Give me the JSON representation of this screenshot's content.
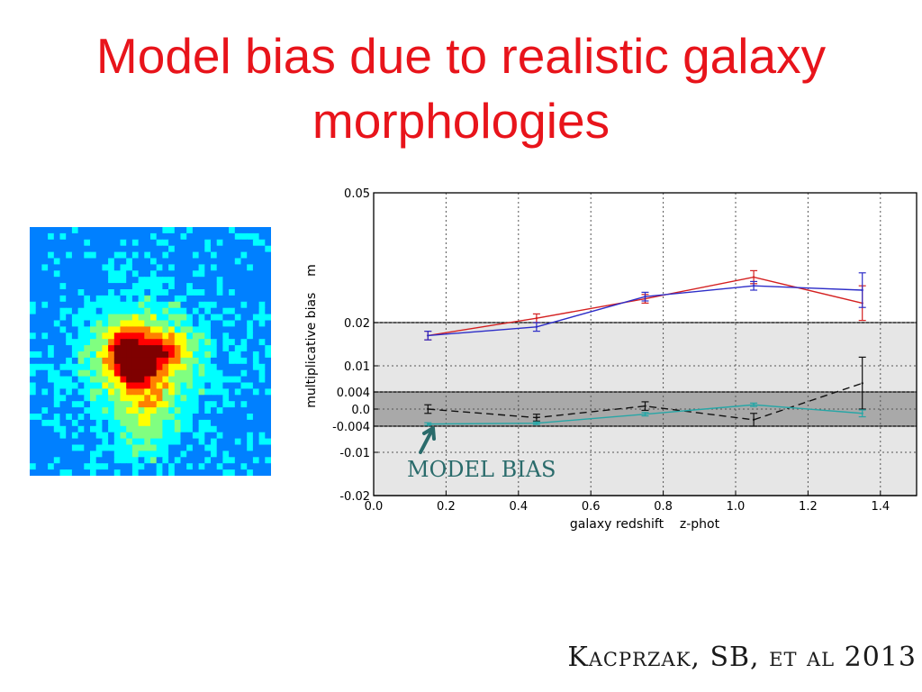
{
  "slide": {
    "title": "Model bias due to realistic galaxy morphologies",
    "credit": "Kacprzak, SB, et al 2013"
  },
  "galaxy_image": {
    "icon": "galaxy-heatmap-icon",
    "colormap": [
      "#00007f",
      "#0000ff",
      "#0080ff",
      "#00ffff",
      "#80ff80",
      "#ffff00",
      "#ff8000",
      "#ff0000",
      "#7f0000"
    ]
  },
  "chart_data": {
    "type": "line",
    "xlabel": "galaxy redshift    z-phot",
    "ylabel": "multiplicative bias    m",
    "xlim": [
      0.0,
      1.5
    ],
    "ylim": [
      -0.02,
      0.05
    ],
    "y_scale": "piecewise",
    "xticks": [
      "0.0",
      "0.2",
      "0.4",
      "0.6",
      "0.8",
      "1.0",
      "1.2",
      "1.4"
    ],
    "xtick_values": [
      0.0,
      0.2,
      0.4,
      0.6,
      0.8,
      1.0,
      1.2,
      1.4
    ],
    "yticks": [
      "0.05",
      "0.02",
      "0.01",
      "0.004",
      "0.0",
      "-0.004",
      "-0.01",
      "-0.02"
    ],
    "ytick_values": [
      0.05,
      0.02,
      0.01,
      0.004,
      0.0,
      -0.004,
      -0.01,
      -0.02
    ],
    "grid": true,
    "bands": [
      {
        "from": -0.02,
        "to": 0.02,
        "color": "#e6e6e6"
      },
      {
        "from": -0.004,
        "to": 0.004,
        "color": "#a9a9a9"
      }
    ],
    "series": [
      {
        "color": "#d42020",
        "style": "solid",
        "x": [
          0.15,
          0.45,
          0.75,
          1.05,
          1.35
        ],
        "y": [
          0.017,
          0.021,
          0.0255,
          0.0305,
          0.0245
        ],
        "err": [
          0.001,
          0.001,
          0.001,
          0.0015,
          0.004
        ]
      },
      {
        "color": "#2d2dc8",
        "style": "solid",
        "x": [
          0.15,
          0.45,
          0.75,
          1.05,
          1.35
        ],
        "y": [
          0.017,
          0.019,
          0.026,
          0.0285,
          0.0275
        ],
        "err": [
          0.001,
          0.001,
          0.001,
          0.001,
          0.004
        ]
      },
      {
        "color": "#111111",
        "style": "dashed",
        "x": [
          0.15,
          0.45,
          0.75,
          1.05,
          1.35
        ],
        "y": [
          0.0,
          -0.002,
          0.0007,
          -0.0025,
          0.006
        ],
        "err": [
          0.001,
          0.0008,
          0.001,
          0.0015,
          0.006
        ]
      },
      {
        "color": "#27a6a6",
        "style": "solid",
        "x": [
          0.15,
          0.45,
          0.75,
          1.05,
          1.35
        ],
        "y": [
          -0.0035,
          -0.0033,
          -0.0012,
          0.001,
          -0.001
        ],
        "err": [
          0.0003,
          0.0003,
          0.0004,
          0.0004,
          0.0008
        ]
      }
    ],
    "annotations": [
      {
        "text": "MODEL BIAS",
        "color": "#2a6b6b"
      }
    ]
  }
}
